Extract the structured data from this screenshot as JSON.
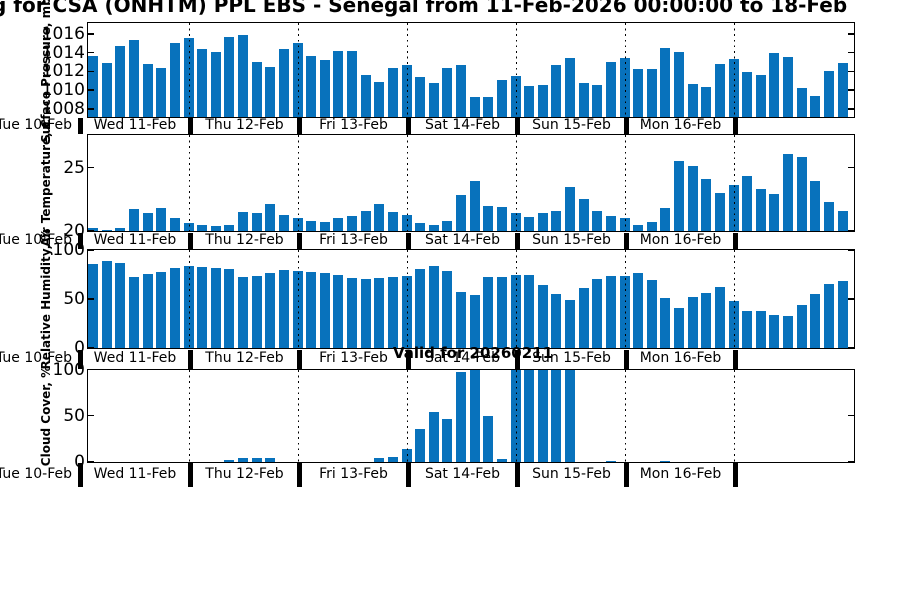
{
  "title": "g for CSA (ONHTM) PPL EBS  - Senegal from 11-Feb-2026 00:00:00 to 18-Feb",
  "annotation": {
    "valid_label": "Valid for 20260211"
  },
  "colors": {
    "bar": "#0872bc",
    "axis": "#000000"
  },
  "x_axis": {
    "left_label": "Tue 10-Feb",
    "day_labels": [
      "Wed 11-Feb",
      "Thu 12-Feb",
      "Fri 13-Feb",
      "Sat 14-Feb",
      "Sun 15-Feb",
      "Mon 16-Feb"
    ],
    "hours_per_bar": 3,
    "bars_per_day": 8
  },
  "chart_data": [
    {
      "type": "bar",
      "id": "surface-pressure",
      "ylabel": "Surface Pressure, mb",
      "yticks": [
        1008,
        1010,
        1012,
        1014,
        1016
      ],
      "ylim": [
        1007.2,
        1017.2
      ],
      "values": [
        1013.6,
        1012.9,
        1014.7,
        1015.3,
        1012.8,
        1012.4,
        1015.0,
        1015.6,
        1014.4,
        1014.1,
        1015.7,
        1015.9,
        1013.0,
        1012.5,
        1014.4,
        1015.0,
        1013.6,
        1013.2,
        1014.2,
        1014.2,
        1011.6,
        1010.9,
        1012.4,
        1012.7,
        1011.4,
        1010.8,
        1012.4,
        1012.7,
        1009.3,
        1009.3,
        1011.1,
        1011.5,
        1010.4,
        1010.6,
        1012.7,
        1013.4,
        1010.8,
        1010.6,
        1013.0,
        1013.4,
        1012.3,
        1012.3,
        1014.5,
        1014.1,
        1010.7,
        1010.3,
        1012.8,
        1013.3,
        1011.9,
        1011.6,
        1014.0,
        1013.5,
        1010.2,
        1009.4,
        1012.0,
        1012.9
      ]
    },
    {
      "type": "bar",
      "id": "air-temperature",
      "ylabel": "Air Temperature, C",
      "yticks": [
        20,
        25
      ],
      "ylim": [
        20,
        27.6
      ],
      "values": [
        20.2,
        20.1,
        20.2,
        21.7,
        21.4,
        21.8,
        21.0,
        20.6,
        20.5,
        20.4,
        20.5,
        21.5,
        21.4,
        22.1,
        21.3,
        21.0,
        20.8,
        20.7,
        21.0,
        21.2,
        21.6,
        22.1,
        21.5,
        21.3,
        20.6,
        20.5,
        20.8,
        22.8,
        23.9,
        22.0,
        21.9,
        21.4,
        21.1,
        21.4,
        21.6,
        23.5,
        22.5,
        21.6,
        21.2,
        21.0,
        20.5,
        20.7,
        21.8,
        25.5,
        25.1,
        24.1,
        23.0,
        23.6,
        24.3,
        23.3,
        22.9,
        26.1,
        25.8,
        23.9,
        22.3,
        21.6
      ]
    },
    {
      "type": "bar",
      "id": "relative-humidity",
      "ylabel": "Relative Humidity, %",
      "yticks": [
        0,
        50,
        100
      ],
      "ylim": [
        0,
        100.5
      ],
      "values": [
        86,
        89,
        87,
        72,
        76,
        78,
        82,
        84,
        83,
        82,
        81,
        72,
        73,
        77,
        80,
        79,
        78,
        77,
        74,
        71,
        70,
        71,
        72,
        73,
        81,
        84,
        79,
        57,
        54,
        72,
        72,
        75,
        74,
        64,
        55,
        49,
        61,
        70,
        73,
        73,
        77,
        69,
        51,
        41,
        52,
        56,
        62,
        48,
        38,
        38,
        34,
        33,
        44,
        55,
        65,
        68
      ]
    },
    {
      "type": "bar",
      "id": "cloud-cover",
      "ylabel": "Cloud Cover, %",
      "yticks": [
        0,
        50,
        100
      ],
      "ylim": [
        0,
        100
      ],
      "values": [
        0,
        0,
        0,
        0,
        0,
        0,
        0,
        0,
        0,
        0,
        2,
        4,
        4,
        4,
        0,
        0,
        0,
        0,
        0,
        0,
        0,
        4,
        5,
        14,
        35,
        54,
        46,
        97,
        99,
        49,
        3,
        100,
        100,
        100,
        100,
        100,
        0,
        0,
        1,
        0,
        0,
        0,
        1,
        0,
        0,
        0,
        0,
        0,
        0,
        0,
        0,
        0,
        0,
        0,
        0,
        0
      ]
    }
  ]
}
